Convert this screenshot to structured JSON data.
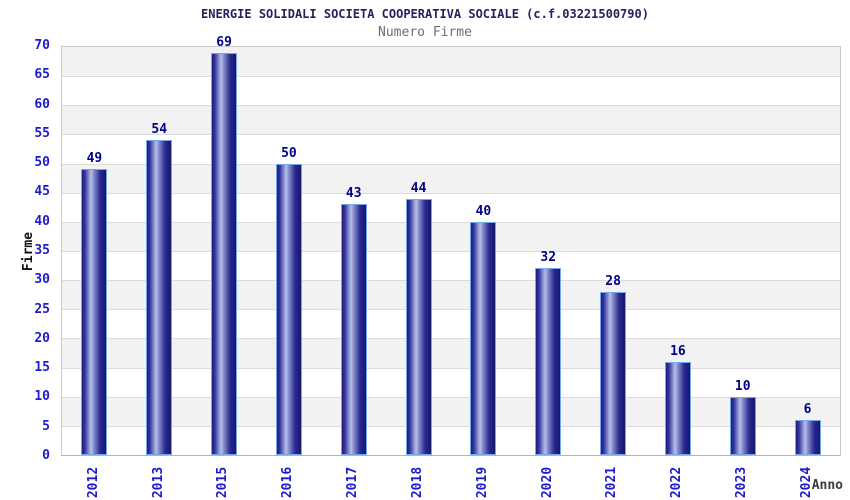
{
  "chart_data": {
    "type": "bar",
    "title": "ENERGIE SOLIDALI SOCIETA COOPERATIVA SOCIALE (c.f.03221500790)",
    "subtitle": "Numero Firme",
    "xlabel": "Anno",
    "ylabel": "Firme",
    "categories": [
      "2012",
      "2013",
      "2015",
      "2016",
      "2017",
      "2018",
      "2019",
      "2020",
      "2021",
      "2022",
      "2023",
      "2024"
    ],
    "values": [
      49,
      54,
      69,
      50,
      43,
      44,
      40,
      32,
      28,
      16,
      10,
      6
    ],
    "ylim": [
      0,
      70
    ],
    "ytick_step": 5,
    "grid": "horizontal-bands-alternating",
    "legend": "none",
    "colors": {
      "title": "#23235f",
      "subtitle": "#6e6e6e",
      "tick_label": "#1c1ccd",
      "value_label": "#00008b",
      "axis_title_y": "#111111",
      "axis_title_x": "#3a3a3a",
      "band_gray": "#f2f2f2",
      "band_white": "#ffffff",
      "gridline": "#dcdcdc",
      "plot_border": "#c8c8c8",
      "bar_border": "#74a8ec",
      "bar_dark": "#1c1c82",
      "bar_mid": "#8d97d0",
      "bar_light": "#b6bee8",
      "bar_dark_end": "#15156f"
    }
  }
}
